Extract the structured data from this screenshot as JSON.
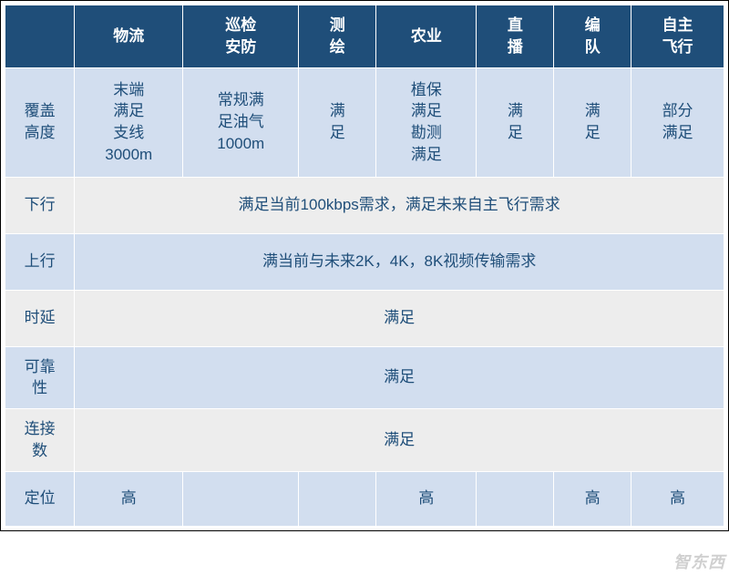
{
  "styling": {
    "header_bg": "#1f4e79",
    "header_fg": "#ffffff",
    "row_band_a": "#d2deef",
    "row_band_b": "#ededed",
    "cell_fg": "#1f4e79",
    "border_color": "#ffffff",
    "font_size_pt": 13,
    "font_family": "Microsoft YaHei",
    "col_widths_ratio": [
      1.0,
      1.4,
      1.4,
      0.9,
      1.1,
      0.9,
      0.9,
      1.0
    ]
  },
  "header": {
    "c0": "",
    "c1": "物流",
    "c2": "巡检\n安防",
    "c3": "测\n绘",
    "c4": "农业",
    "c5": "直\n播",
    "c6": "编\n队",
    "c7": "自主\n飞行"
  },
  "rows": {
    "r0": {
      "label": "覆盖\n高度",
      "c1": "末端\n满足\n支线\n3000m",
      "c2": "常规满\n足油气\n1000m",
      "c3": "满\n足",
      "c4": "植保\n满足\n勘测\n满足",
      "c5": "满\n足",
      "c6": "满\n足",
      "c7": "部分\n满足"
    },
    "r1": {
      "label": "下行",
      "merged": "满足当前100kbps需求，满足未来自主飞行需求"
    },
    "r2": {
      "label": "上行",
      "merged": "满当前与未来2K，4K，8K视频传输需求"
    },
    "r3": {
      "label": "时延",
      "merged": "满足"
    },
    "r4": {
      "label": "可靠\n性",
      "merged": "满足"
    },
    "r5": {
      "label": "连接\n数",
      "merged": "满足"
    },
    "r6": {
      "label": "定位",
      "c1": "高",
      "c2": "",
      "c3": "",
      "c4": "高",
      "c5": "",
      "c6": "高",
      "c7": "高"
    }
  },
  "watermark": "智东西"
}
